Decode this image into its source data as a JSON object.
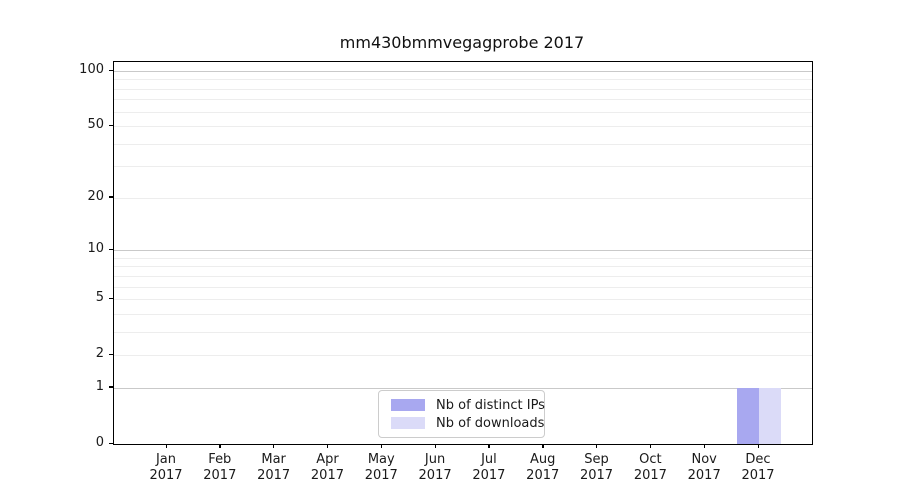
{
  "chart_data": {
    "type": "bar",
    "title": "mm430bmmvegagprobe 2017",
    "xlabel": "",
    "ylabel": "",
    "categories": [
      "Jan",
      "Feb",
      "Mar",
      "Apr",
      "May",
      "Jun",
      "Jul",
      "Aug",
      "Sep",
      "Oct",
      "Nov",
      "Dec"
    ],
    "year_label": "2017",
    "series": [
      {
        "name": "Nb of distinct IPs",
        "color": "#a8a8f0",
        "values": [
          0,
          0,
          0,
          0,
          0,
          0,
          0,
          0,
          0,
          0,
          0,
          1
        ]
      },
      {
        "name": "Nb of downloads",
        "color": "#dbdbf8",
        "values": [
          0,
          0,
          0,
          0,
          0,
          0,
          0,
          0,
          0,
          0,
          0,
          1
        ]
      }
    ],
    "yticks": [
      0,
      1,
      2,
      5,
      10,
      20,
      50,
      100
    ],
    "scale": "log1p",
    "ylim": [
      0,
      112
    ],
    "grid": true,
    "legend_position": "lower center"
  }
}
